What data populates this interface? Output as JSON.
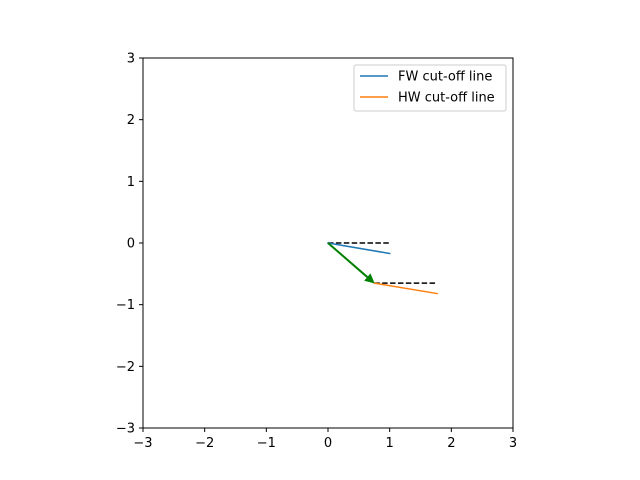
{
  "chart_data": {
    "type": "line",
    "title": "",
    "xlabel": "",
    "ylabel": "",
    "xlim": [
      -3,
      3
    ],
    "ylim": [
      -3,
      3
    ],
    "xticks": [
      -3,
      -2,
      -1,
      0,
      1,
      2,
      3
    ],
    "yticks": [
      -3,
      -2,
      -1,
      0,
      1,
      2,
      3
    ],
    "xtick_labels": [
      "−3",
      "−2",
      "−1",
      "0",
      "1",
      "2",
      "3"
    ],
    "ytick_labels": [
      "−3",
      "−2",
      "−1",
      "0",
      "1",
      "2",
      "3"
    ],
    "grid": false,
    "legend_position": "top-right",
    "series": [
      {
        "name": "FW cut-off line",
        "color": "#1f77b4",
        "style": "solid",
        "x": [
          0,
          1.0
        ],
        "y": [
          0,
          -0.17
        ]
      },
      {
        "name": "HW cut-off line",
        "color": "#ff7f0e",
        "style": "solid",
        "x": [
          0.75,
          1.77
        ],
        "y": [
          -0.65,
          -0.82
        ]
      }
    ],
    "reference_lines": [
      {
        "color": "#000000",
        "style": "dashed",
        "x": [
          0,
          1.0
        ],
        "y": [
          0,
          0
        ]
      },
      {
        "color": "#000000",
        "style": "dashed",
        "x": [
          0.75,
          1.77
        ],
        "y": [
          -0.65,
          -0.65
        ]
      }
    ],
    "arrow": {
      "color": "#008000",
      "from": [
        0,
        0
      ],
      "to": [
        0.75,
        -0.65
      ]
    }
  }
}
